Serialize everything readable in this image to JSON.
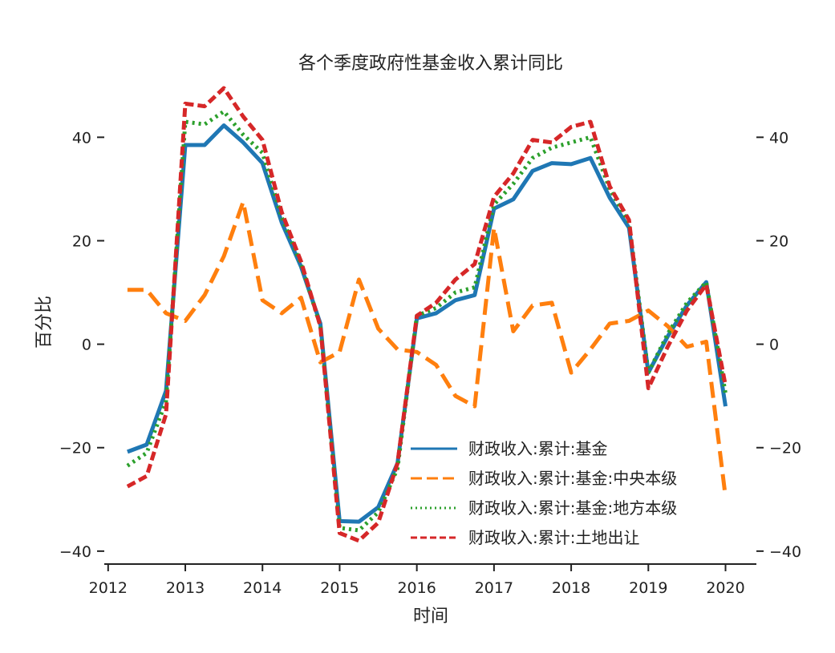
{
  "chart_data": {
    "type": "line",
    "title": "各个季度政府性基金收入累计同比",
    "xlabel": "时间",
    "ylabel": "百分比",
    "xlim": [
      2011.95,
      2020.4
    ],
    "ylim": [
      -42.5,
      49.5
    ],
    "xticks": [
      "2012",
      "2013",
      "2014",
      "2015",
      "2016",
      "2017",
      "2018",
      "2019",
      "2020"
    ],
    "yticks": [
      "40",
      "20",
      "0",
      "−20",
      "−40"
    ],
    "ytick_values": [
      40,
      20,
      0,
      -20,
      -40
    ],
    "right_axis": true,
    "grid": false,
    "legend_position": "lower-right",
    "series": [
      {
        "name": "财政收入:累计:基金",
        "color": "#1f77b4",
        "style": "solid",
        "x": [
          2012.25,
          2012.5,
          2012.75,
          2013.0,
          2013.25,
          2013.5,
          2013.75,
          2014.0,
          2014.25,
          2014.5,
          2014.75,
          2015.0,
          2015.25,
          2015.5,
          2015.75,
          2016.0,
          2016.25,
          2016.5,
          2016.75,
          2017.0,
          2017.25,
          2017.5,
          2017.75,
          2018.0,
          2018.25,
          2018.5,
          2018.75,
          2019.0,
          2019.25,
          2019.5,
          2019.75,
          2020.0
        ],
        "y": [
          -20.8,
          -19.4,
          -9.0,
          38.5,
          38.5,
          42.3,
          39.0,
          35.0,
          23.5,
          15.0,
          4.0,
          -34.2,
          -34.3,
          -31.5,
          -23.0,
          5.0,
          6.0,
          8.5,
          9.5,
          26.2,
          28.0,
          33.5,
          35.0,
          34.8,
          36.0,
          28.3,
          22.5,
          -5.5,
          1.5,
          7.5,
          12.0,
          -12.0
        ]
      },
      {
        "name": "财政收入:累计:基金:中央本级",
        "color": "#ff7f0e",
        "style": "dashed",
        "x": [
          2012.25,
          2012.5,
          2012.75,
          2013.0,
          2013.25,
          2013.5,
          2013.75,
          2014.0,
          2014.25,
          2014.5,
          2014.75,
          2015.0,
          2015.25,
          2015.5,
          2015.75,
          2016.0,
          2016.25,
          2016.5,
          2016.75,
          2017.0,
          2017.25,
          2017.5,
          2017.75,
          2018.0,
          2018.25,
          2018.5,
          2018.75,
          2019.0,
          2019.25,
          2019.5,
          2019.75,
          2020.0
        ],
        "y": [
          10.5,
          10.5,
          6.0,
          4.5,
          9.5,
          17.0,
          27.5,
          8.5,
          6.0,
          9.0,
          -3.5,
          -1.5,
          12.5,
          3.0,
          -1.0,
          -1.5,
          -4.0,
          -10.0,
          -12.0,
          22.5,
          2.5,
          7.5,
          8.0,
          -5.5,
          -1.0,
          4.0,
          4.5,
          6.5,
          3.5,
          -0.5,
          0.5,
          -29.5
        ]
      },
      {
        "name": "财政收入:累计:基金:地方本级",
        "color": "#2ca02c",
        "style": "dotted",
        "x": [
          2012.25,
          2012.5,
          2012.75,
          2013.0,
          2013.25,
          2013.5,
          2013.75,
          2014.0,
          2014.25,
          2014.5,
          2014.75,
          2015.0,
          2015.25,
          2015.5,
          2015.75,
          2016.0,
          2016.25,
          2016.5,
          2016.75,
          2017.0,
          2017.25,
          2017.5,
          2017.75,
          2018.0,
          2018.25,
          2018.5,
          2018.75,
          2019.0,
          2019.25,
          2019.5,
          2019.75,
          2020.0
        ],
        "y": [
          -23.5,
          -21.0,
          -11.0,
          43.0,
          42.5,
          45.0,
          40.5,
          37.0,
          24.5,
          15.5,
          3.5,
          -35.5,
          -36.0,
          -32.5,
          -24.0,
          5.5,
          7.0,
          10.0,
          11.0,
          27.0,
          31.0,
          36.0,
          38.0,
          39.0,
          40.0,
          30.0,
          23.5,
          -5.5,
          2.0,
          8.0,
          12.0,
          -9.5
        ]
      },
      {
        "name": "财政收入:累计:土地出让",
        "color": "#d62728",
        "style": "dashdot",
        "x": [
          2012.25,
          2012.5,
          2012.75,
          2013.0,
          2013.25,
          2013.5,
          2013.75,
          2014.0,
          2014.25,
          2014.5,
          2014.75,
          2015.0,
          2015.25,
          2015.5,
          2015.75,
          2016.0,
          2016.25,
          2016.5,
          2016.75,
          2017.0,
          2017.25,
          2017.5,
          2017.75,
          2018.0,
          2018.25,
          2018.5,
          2018.75,
          2019.0,
          2019.25,
          2019.5,
          2019.75,
          2020.0
        ],
        "y": [
          -27.5,
          -25.5,
          -13.5,
          46.5,
          46.0,
          49.5,
          44.0,
          39.5,
          25.5,
          16.0,
          3.5,
          -36.5,
          -38.0,
          -34.5,
          -23.0,
          5.5,
          8.0,
          12.5,
          15.5,
          28.5,
          33.0,
          39.5,
          39.0,
          42.0,
          43.0,
          30.5,
          24.0,
          -8.5,
          -0.5,
          6.5,
          11.5,
          -8.0
        ]
      }
    ]
  }
}
